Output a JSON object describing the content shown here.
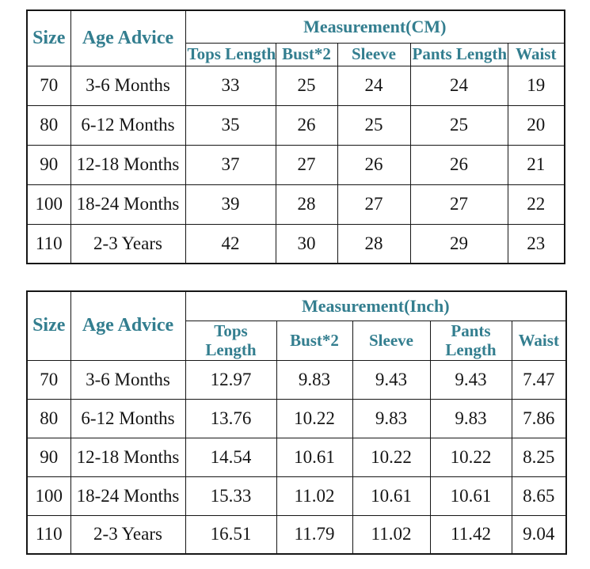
{
  "colors": {
    "header_text": "#337e8f",
    "body_text": "#161616",
    "border": "#161616",
    "background": "#ffffff"
  },
  "chart_data": [
    {
      "type": "table",
      "title": "Measurement(CM)",
      "corner_headers": {
        "size": "Size",
        "age": "Age Advice"
      },
      "measurement_header": "Measurement(CM)",
      "columns": [
        "Tops Length",
        "Bust*2",
        "Sleeve",
        "Pants Length",
        "Waist"
      ],
      "rows": [
        {
          "size": "70",
          "age": "3-6 Months",
          "values": [
            "33",
            "25",
            "24",
            "24",
            "19"
          ]
        },
        {
          "size": "80",
          "age": "6-12 Months",
          "values": [
            "35",
            "26",
            "25",
            "25",
            "20"
          ]
        },
        {
          "size": "90",
          "age": "12-18 Months",
          "values": [
            "37",
            "27",
            "26",
            "26",
            "21"
          ]
        },
        {
          "size": "100",
          "age": "18-24 Months",
          "values": [
            "39",
            "28",
            "27",
            "27",
            "22"
          ]
        },
        {
          "size": "110",
          "age": "2-3 Years",
          "values": [
            "42",
            "30",
            "28",
            "29",
            "23"
          ]
        }
      ]
    },
    {
      "type": "table",
      "title": "Measurement(Inch)",
      "corner_headers": {
        "size": "Size",
        "age": "Age Advice"
      },
      "measurement_header": "Measurement(Inch)",
      "columns": [
        "Tops Length",
        "Bust*2",
        "Sleeve",
        "Pants Length",
        "Waist"
      ],
      "rows": [
        {
          "size": "70",
          "age": "3-6 Months",
          "values": [
            "12.97",
            "9.83",
            "9.43",
            "9.43",
            "7.47"
          ]
        },
        {
          "size": "80",
          "age": "6-12 Months",
          "values": [
            "13.76",
            "10.22",
            "9.83",
            "9.83",
            "7.86"
          ]
        },
        {
          "size": "90",
          "age": "12-18 Months",
          "values": [
            "14.54",
            "10.61",
            "10.22",
            "10.22",
            "8.25"
          ]
        },
        {
          "size": "100",
          "age": "18-24 Months",
          "values": [
            "15.33",
            "11.02",
            "10.61",
            "10.61",
            "8.65"
          ]
        },
        {
          "size": "110",
          "age": "2-3 Years",
          "values": [
            "16.51",
            "11.79",
            "11.02",
            "11.42",
            "9.04"
          ]
        }
      ]
    }
  ]
}
